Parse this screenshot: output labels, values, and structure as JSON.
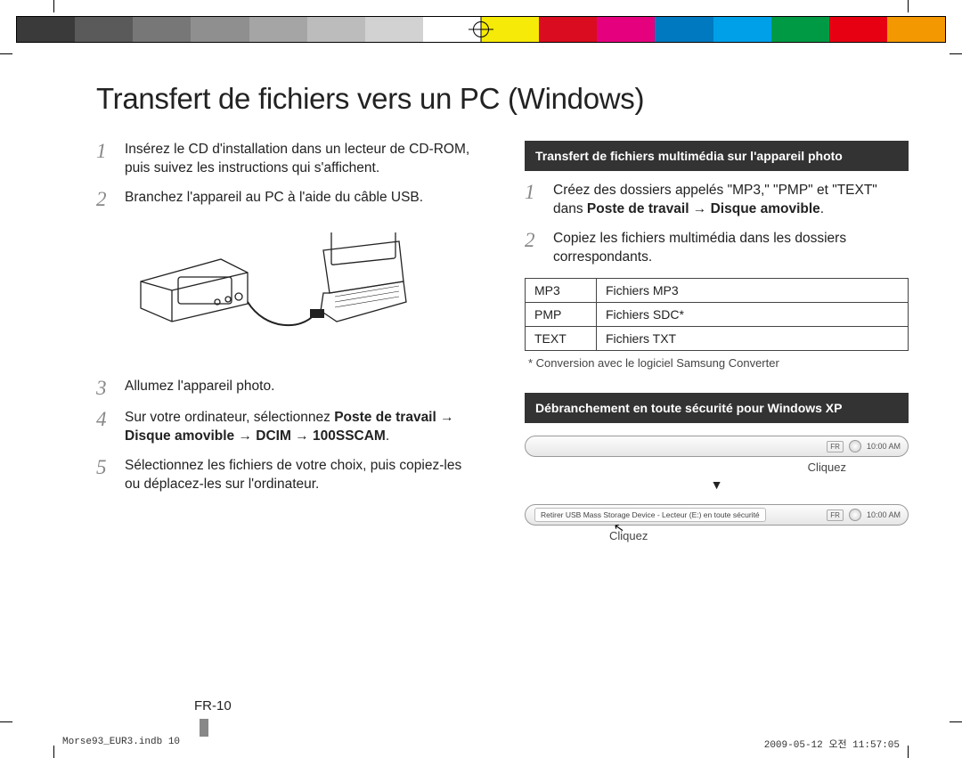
{
  "colorbar": [
    "#3a3a3a",
    "#5a5a5a",
    "#777777",
    "#8f8f8f",
    "#a5a5a5",
    "#bcbcbc",
    "#d2d2d2",
    "#ffffff",
    "#f6ea08",
    "#d90d1f",
    "#e5007e",
    "#0079c0",
    "#00a0e9",
    "#009944",
    "#e60012",
    "#f39800"
  ],
  "title": "Transfert de fichiers vers un PC (Windows)",
  "left_steps": [
    {
      "n": "1",
      "text": "Insérez le CD d'installation dans un lecteur de CD-ROM, puis suivez les instructions qui s'affichent."
    },
    {
      "n": "2",
      "text": "Branchez l'appareil au PC à l'aide du câble USB."
    },
    {
      "n": "3",
      "text": "Allumez l'appareil photo."
    },
    {
      "n": "4",
      "text": "Sur votre ordinateur, sélectionnez ",
      "bold": "Poste de travail → Disque amovible → DCIM → 100SSCAM",
      "suffix": "."
    },
    {
      "n": "5",
      "text": "Sélectionnez les fichiers de votre choix, puis copiez-les ou déplacez-les sur l'ordinateur."
    }
  ],
  "heading_media": "Transfert de fichiers multimédia sur l'appareil photo",
  "right_steps": [
    {
      "n": "1",
      "text": "Créez des dossiers appelés \"MP3,\" \"PMP\" et \"TEXT\" dans ",
      "bold": "Poste de travail → Disque amovible",
      "suffix": "."
    },
    {
      "n": "2",
      "text": "Copiez les fichiers multimédia dans les dossiers correspondants."
    }
  ],
  "table_rows": [
    [
      "MP3",
      "Fichiers MP3"
    ],
    [
      "PMP",
      "Fichiers SDC*"
    ],
    [
      "TEXT",
      "Fichiers TXT"
    ]
  ],
  "footnote": "* Conversion avec le logiciel Samsung Converter",
  "heading_unplug": "Débranchement en toute sécurité pour Windows XP",
  "taskbar_lang": "FR",
  "taskbar_time": "10:00 AM",
  "balloon_text": "Retirer USB Mass Storage Device - Lecteur (E:) en toute sécurité",
  "click_label": "Cliquez",
  "arrow": "▼",
  "page_number": "FR-10",
  "footer_left": "Morse93_EUR3.indb   10",
  "footer_right": "2009-05-12   오전 11:57:05"
}
